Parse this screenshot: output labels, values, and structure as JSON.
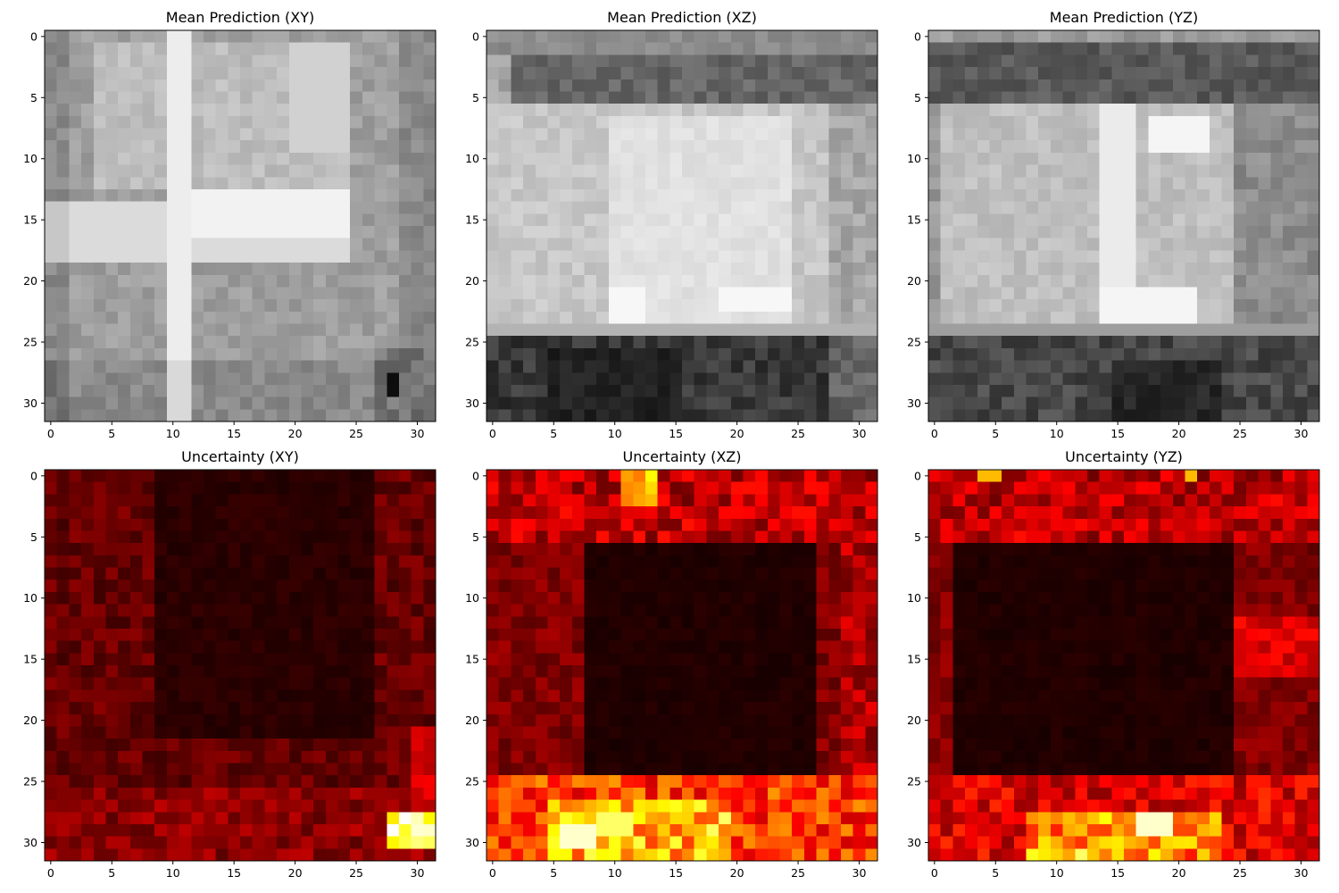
{
  "figure": {
    "panels": [
      {
        "title": "Mean Prediction (XY)",
        "colormap": "gray"
      },
      {
        "title": "Mean Prediction (XZ)",
        "colormap": "gray"
      },
      {
        "title": "Mean Prediction (YZ)",
        "colormap": "gray"
      },
      {
        "title": "Uncertainty (XY)",
        "colormap": "hot"
      },
      {
        "title": "Uncertainty (XZ)",
        "colormap": "hot"
      },
      {
        "title": "Uncertainty (YZ)",
        "colormap": "hot"
      }
    ]
  },
  "chart_data": [
    {
      "type": "heatmap",
      "title": "Mean Prediction (XY)",
      "grid_size": 32,
      "xlim": [
        0,
        31
      ],
      "ylim": [
        0,
        31
      ],
      "xticks": [
        0,
        5,
        10,
        15,
        20,
        25,
        30
      ],
      "yticks": [
        0,
        5,
        10,
        15,
        20,
        25,
        30
      ],
      "colormap": "gray",
      "pattern": "bright cross: vertical band x=10-11, horizontal band y=13-20; darker corners; darkest bottom-right x=28-30 y=28-31"
    },
    {
      "type": "heatmap",
      "title": "Mean Prediction (XZ)",
      "grid_size": 32,
      "xlim": [
        0,
        31
      ],
      "ylim": [
        0,
        31
      ],
      "xticks": [
        0,
        5,
        10,
        15,
        20,
        25,
        30
      ],
      "yticks": [
        0,
        5,
        10,
        15,
        20,
        25,
        30
      ],
      "colormap": "gray",
      "pattern": "bright rectangle x=10-24 y=7-23; darker band y=2-5; very dark band y=25-31"
    },
    {
      "type": "heatmap",
      "title": "Mean Prediction (YZ)",
      "grid_size": 32,
      "xlim": [
        0,
        31
      ],
      "ylim": [
        0,
        31
      ],
      "xticks": [
        0,
        5,
        10,
        15,
        20,
        25,
        30
      ],
      "yticks": [
        0,
        5,
        10,
        15,
        20,
        25,
        30
      ],
      "colormap": "gray",
      "pattern": "bright rectangle x=2-23 y=6-23 with brightest column x=14-16 and top-right y=7-9 x=18-22; dark band y=1-5; dark band y=25-31"
    },
    {
      "type": "heatmap",
      "title": "Uncertainty (XY)",
      "grid_size": 32,
      "xlim": [
        0,
        31
      ],
      "ylim": [
        0,
        31
      ],
      "xticks": [
        0,
        5,
        10,
        15,
        20,
        25,
        30
      ],
      "yticks": [
        0,
        5,
        10,
        15,
        20,
        25,
        30
      ],
      "colormap": "hot",
      "pattern": "near zero in center; low values along edges; hot spot bottom-right x=28-31 y=28-30 (max)"
    },
    {
      "type": "heatmap",
      "title": "Uncertainty (XZ)",
      "grid_size": 32,
      "xlim": [
        0,
        31
      ],
      "ylim": [
        0,
        31
      ],
      "xticks": [
        0,
        5,
        10,
        15,
        20,
        25,
        30
      ],
      "yticks": [
        0,
        5,
        10,
        15,
        20,
        25,
        30
      ],
      "colormap": "hot",
      "pattern": "near zero inside rectangle x=8-26 y=6-24; moderate top band y=0-5; high bottom band y=25-31 peaking x=5-13 y=29-30"
    },
    {
      "type": "heatmap",
      "title": "Uncertainty (YZ)",
      "grid_size": 32,
      "xlim": [
        0,
        31
      ],
      "ylim": [
        0,
        31
      ],
      "xticks": [
        0,
        5,
        10,
        15,
        20,
        25,
        30
      ],
      "yticks": [
        0,
        5,
        10,
        15,
        20,
        25,
        30
      ],
      "colormap": "hot",
      "pattern": "near zero inside rectangle x=2-24 y=6-24; moderate top band y=0-5; high bottom band y=27-31 peaking x=17-19 y=28-29"
    }
  ]
}
